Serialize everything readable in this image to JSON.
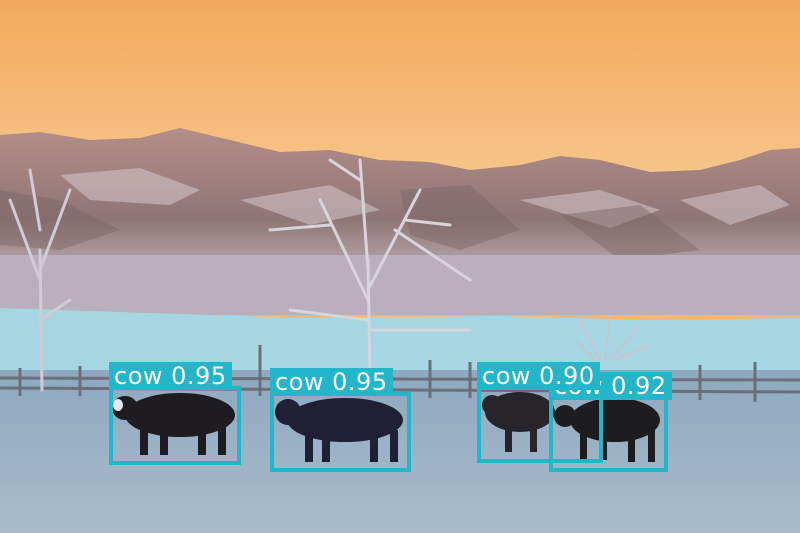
{
  "photo": {
    "colors": {
      "sky_top": "#f4a95c",
      "sky_bottom": "#f7c98f",
      "mountain": "#9a7b78",
      "lake": "#a7d7e2",
      "field": "#9fb4c6",
      "cow": "#1f1c22",
      "box": "#22b6c8"
    }
  },
  "detections": [
    {
      "label": "cow",
      "score": "0.95"
    },
    {
      "label": "cow",
      "score": "0.95"
    },
    {
      "label": "cow",
      "score": "0.90"
    },
    {
      "label": "cow",
      "score": "0.92"
    }
  ]
}
